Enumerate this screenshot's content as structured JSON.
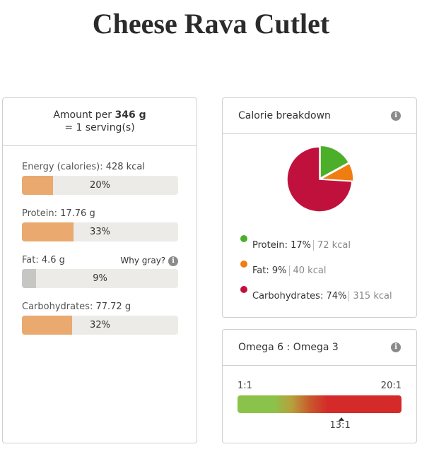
{
  "title": "Cheese Rava Cutlet",
  "amount": {
    "prefix": "Amount per",
    "grams": "346 g",
    "serving": "= 1 serving(s)"
  },
  "nutrients": [
    {
      "name": "Energy (calories):",
      "value": "428 kcal",
      "percent": "20%",
      "fraction": 0.2
    },
    {
      "name": "Protein:",
      "value": "17.76 g",
      "percent": "33%",
      "fraction": 0.33
    },
    {
      "name": "Fat:",
      "value": "4.6 g",
      "percent": "9%",
      "fraction": 0.09
    },
    {
      "name": "Carbohydrates:",
      "value": "77.72 g",
      "percent": "32%",
      "fraction": 0.32
    }
  ],
  "why_gray": "Why gray?",
  "info_glyph": "i",
  "calorie_breakdown": {
    "title": "Calorie breakdown",
    "items": [
      {
        "label": "Protein:",
        "percent": "17%",
        "kcal": "72 kcal",
        "color": "#4caf2a",
        "fraction": 0.17
      },
      {
        "label": "Fat:",
        "percent": "9%",
        "kcal": "40 kcal",
        "color": "#ef7d10",
        "fraction": 0.09
      },
      {
        "label": "Carbohydrates:",
        "percent": "74%",
        "kcal": "315 kcal",
        "color": "#c0113c",
        "fraction": 0.74
      }
    ]
  },
  "omega": {
    "title": "Omega 6 : Omega 3",
    "min_label": "1:1",
    "max_label": "20:1",
    "value_label": "13:1",
    "value": 13,
    "min": 1,
    "max": 20
  }
}
